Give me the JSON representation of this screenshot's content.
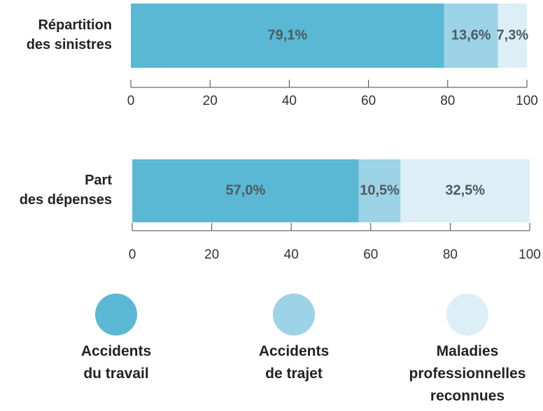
{
  "chart_data": [
    {
      "type": "bar",
      "orientation": "horizontal",
      "stacked": true,
      "categories": [
        "Répartition des sinistres"
      ],
      "series": [
        {
          "name": "Accidents du travail",
          "color": "#5ab8d4",
          "values": [
            79.1
          ],
          "value_labels": [
            "79,1%"
          ]
        },
        {
          "name": "Accidents de trajet",
          "color": "#9dd3e6",
          "values": [
            13.6
          ],
          "value_labels": [
            "13,6%"
          ]
        },
        {
          "name": "Maladies professionnelles reconnues",
          "color": "#dceff6",
          "values": [
            7.3
          ],
          "value_labels": [
            "7,3%"
          ]
        }
      ],
      "xlim": [
        0,
        100
      ],
      "xticks": [
        0,
        20,
        40,
        60,
        80,
        100
      ],
      "legend": "bottom"
    },
    {
      "type": "bar",
      "orientation": "horizontal",
      "stacked": true,
      "categories": [
        "Part des dépenses"
      ],
      "series": [
        {
          "name": "Accidents du travail",
          "color": "#5ab8d4",
          "values": [
            57.0
          ],
          "value_labels": [
            "57,0%"
          ]
        },
        {
          "name": "Accidents de trajet",
          "color": "#9dd3e6",
          "values": [
            10.5
          ],
          "value_labels": [
            "10,5%"
          ]
        },
        {
          "name": "Maladies professionnelles reconnues",
          "color": "#dceff6",
          "values": [
            32.5
          ],
          "value_labels": [
            "32,5%"
          ]
        }
      ],
      "xlim": [
        0,
        100
      ],
      "xticks": [
        0,
        20,
        40,
        60,
        80,
        100
      ]
    }
  ]
}
